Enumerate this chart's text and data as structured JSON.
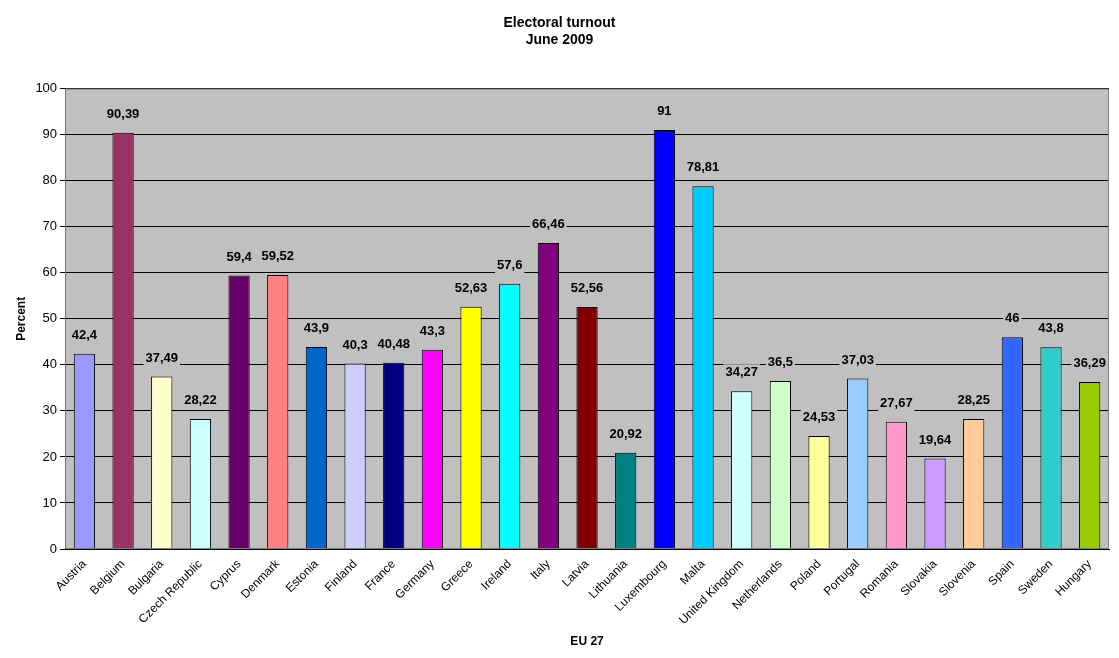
{
  "chart_data": {
    "type": "bar",
    "title": "Electoral turnout",
    "subtitle": "June 2009",
    "xlabel": "EU 27",
    "ylabel": "Percent",
    "categories": [
      "Austria",
      "Belgium",
      "Bulgaria",
      "Czech Republic",
      "Cyprus",
      "Denmark",
      "Estonia",
      "Finland",
      "France",
      "Germany",
      "Greece",
      "Ireland",
      "Italy",
      "Latvia",
      "Lithuania",
      "Luxembourg",
      "Malta",
      "United Kingdom",
      "Netherlands",
      "Poland",
      "Portugal",
      "Romania",
      "Slovakia",
      "Slovenia",
      "Spain",
      "Sweden",
      "Hungary"
    ],
    "values": [
      42.4,
      90.39,
      37.49,
      28.22,
      59.4,
      59.52,
      43.9,
      40.3,
      40.48,
      43.3,
      52.63,
      57.6,
      66.46,
      52.56,
      20.92,
      91,
      78.81,
      34.27,
      36.5,
      24.53,
      37.03,
      27.67,
      19.64,
      28.25,
      46,
      43.8,
      36.29
    ],
    "value_labels": [
      "42,4",
      "90,39",
      "37,49",
      "28,22",
      "59,4",
      "59,52",
      "43,9",
      "40,3",
      "40,48",
      "43,3",
      "52,63",
      "57,6",
      "66,46",
      "52,56",
      "20,92",
      "91",
      "78,81",
      "34,27",
      "36,5",
      "24,53",
      "37,03",
      "27,67",
      "19,64",
      "28,25",
      "46",
      "43,8",
      "36,29"
    ],
    "colors": [
      "#9999ff",
      "#993366",
      "#ffffcc",
      "#ccffff",
      "#660066",
      "#ff8080",
      "#0066cc",
      "#ccccff",
      "#000080",
      "#ff00ff",
      "#ffff00",
      "#00ffff",
      "#800080",
      "#800000",
      "#008080",
      "#0000ff",
      "#00ccff",
      "#ccffff",
      "#ccffcc",
      "#ffff99",
      "#99ccff",
      "#ff99cc",
      "#cc99ff",
      "#ffcc99",
      "#3366ff",
      "#33cccc",
      "#99cc00"
    ],
    "ylim": [
      0,
      100
    ],
    "yticks": [
      0,
      10,
      20,
      30,
      40,
      50,
      60,
      70,
      80,
      90,
      100
    ],
    "grid": "y",
    "legend": false
  }
}
